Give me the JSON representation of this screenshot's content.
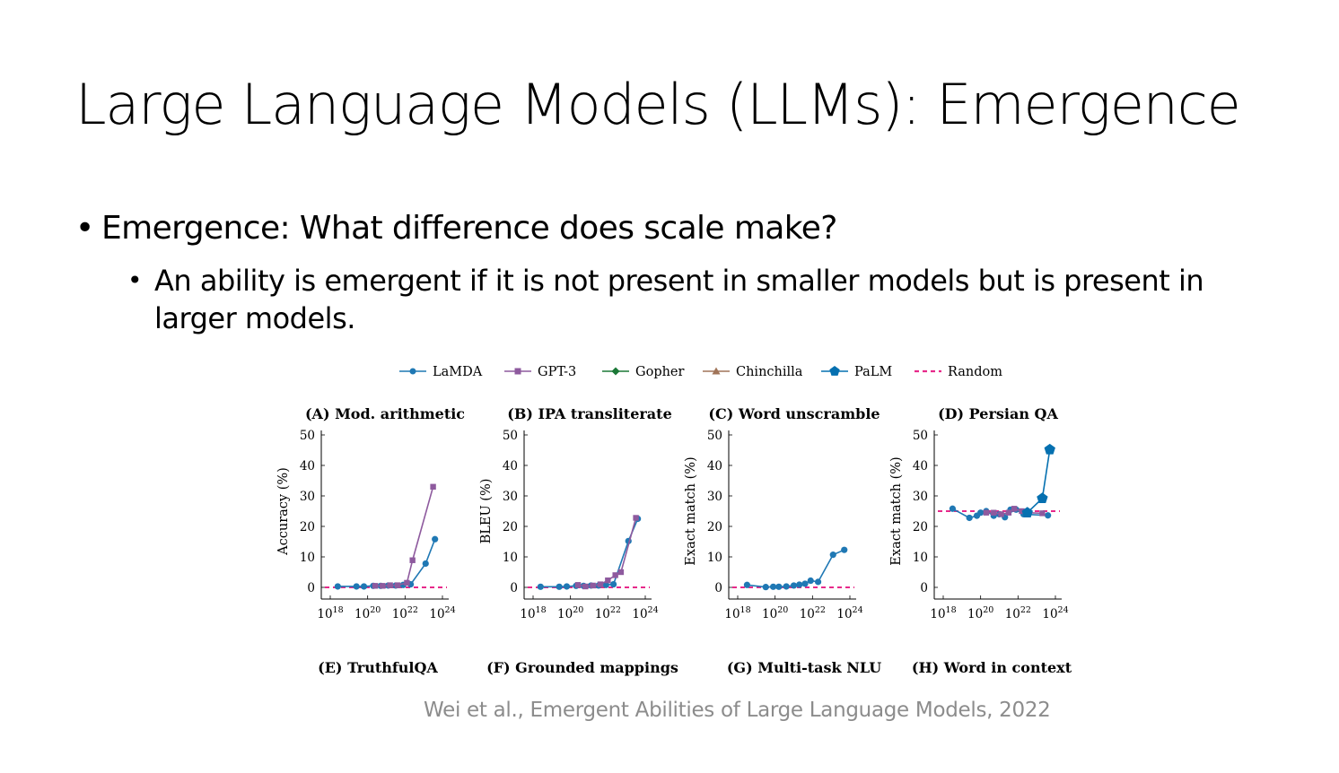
{
  "slide": {
    "title": "Large Language Models (LLMs): Emergence",
    "bullet_level1": "Emergence: What difference does scale make?",
    "bullet_level2": "An ability is emergent if it is not present in smaller models but is present in larger models.",
    "citation": "Wei et al., Emergent Abilities of Large Language Models, 2022",
    "bullet_glyph": "•"
  },
  "legend": [
    {
      "name": "LaMDA",
      "marker": "circle",
      "color": "#1f78b4"
    },
    {
      "name": "GPT-3",
      "marker": "square",
      "color": "#8e5a9e"
    },
    {
      "name": "Gopher",
      "marker": "diamond",
      "color": "#1b7837"
    },
    {
      "name": "Chinchilla",
      "marker": "triangle",
      "color": "#a07458"
    },
    {
      "name": "PaLM",
      "marker": "pentagon",
      "color": "#0570b0"
    },
    {
      "name": "Random",
      "marker": "dashed",
      "color": "#e7298a"
    }
  ],
  "bottom_captions": [
    "(E) TruthfulQA",
    "(F) Grounded mappings",
    "(G) Multi-task NLU",
    "(H) Word in context"
  ],
  "chart_data": [
    {
      "type": "line",
      "title": "(A) Mod. arithmetic",
      "ylabel": "Accuracy (%)",
      "xscale": "log",
      "xlim": [
        1e+18,
        1e+24
      ],
      "ylim": [
        0,
        50
      ],
      "xticks": [
        "10^18",
        "10^20",
        "10^22",
        "10^24"
      ],
      "yticks": [
        0,
        10,
        20,
        30,
        40,
        50
      ],
      "random_baseline": 0,
      "series": [
        {
          "name": "LaMDA",
          "x_log10": [
            18.4,
            19.4,
            19.8,
            20.3,
            20.7,
            21.1,
            21.5,
            21.9,
            22.3,
            23.1,
            23.6
          ],
          "y": [
            0.3,
            0.3,
            0.3,
            0.5,
            0.5,
            0.6,
            0.6,
            0.8,
            1.0,
            7.8,
            15.8
          ]
        },
        {
          "name": "GPT-3",
          "x_log10": [
            20.4,
            20.8,
            21.2,
            21.6,
            22.1,
            22.4,
            23.5
          ],
          "y": [
            0.5,
            0.5,
            0.7,
            0.7,
            1.5,
            8.9,
            33.0
          ]
        }
      ]
    },
    {
      "type": "line",
      "title": "(B) IPA transliterate",
      "ylabel": "BLEU (%)",
      "xscale": "log",
      "xlim": [
        1e+18,
        1e+24
      ],
      "ylim": [
        0,
        50
      ],
      "xticks": [
        "10^18",
        "10^20",
        "10^22",
        "10^24"
      ],
      "yticks": [
        0,
        10,
        20,
        30,
        40,
        50
      ],
      "random_baseline": 0,
      "series": [
        {
          "name": "LaMDA",
          "x_log10": [
            18.4,
            19.4,
            19.8,
            20.3,
            20.7,
            21.1,
            21.5,
            21.9,
            22.3,
            23.1,
            23.6
          ],
          "y": [
            0.2,
            0.2,
            0.3,
            0.5,
            0.5,
            0.6,
            0.6,
            0.8,
            1.0,
            15.2,
            22.5
          ]
        },
        {
          "name": "GPT-3",
          "x_log10": [
            20.4,
            20.8,
            21.2,
            21.6,
            22.0,
            22.4,
            22.7,
            23.5
          ],
          "y": [
            0.8,
            0.3,
            0.6,
            1.0,
            2.3,
            4.0,
            5.0,
            22.8
          ]
        }
      ]
    },
    {
      "type": "line",
      "title": "(C) Word unscramble",
      "ylabel": "Exact match (%)",
      "xscale": "log",
      "xlim": [
        1e+18,
        1e+24
      ],
      "ylim": [
        0,
        50
      ],
      "xticks": [
        "10^18",
        "10^20",
        "10^22",
        "10^24"
      ],
      "yticks": [
        0,
        10,
        20,
        30,
        40,
        50
      ],
      "random_baseline": 0,
      "series": [
        {
          "name": "LaMDA",
          "x_log10": [
            18.5,
            19.5,
            19.9,
            20.2,
            20.6,
            21.0,
            21.3,
            21.6,
            21.9,
            22.3,
            23.1,
            23.7
          ],
          "y": [
            0.8,
            0.1,
            0.2,
            0.2,
            0.3,
            0.6,
            0.9,
            1.2,
            2.2,
            1.8,
            10.7,
            12.3
          ]
        }
      ]
    },
    {
      "type": "line",
      "title": "(D) Persian QA",
      "ylabel": "Exact match (%)",
      "xscale": "log",
      "xlim": [
        1e+18,
        1e+24
      ],
      "ylim": [
        0,
        50
      ],
      "xticks": [
        "10^18",
        "10^20",
        "10^22",
        "10^24"
      ],
      "yticks": [
        0,
        10,
        20,
        30,
        40,
        50
      ],
      "random_baseline": 25,
      "series": [
        {
          "name": "LaMDA",
          "x_log10": [
            18.5,
            19.4,
            19.8,
            20.0,
            20.3,
            20.7,
            21.0,
            21.3,
            21.6,
            21.9,
            22.3,
            23.6
          ],
          "y": [
            25.8,
            22.8,
            23.5,
            24.5,
            25.0,
            23.5,
            24.0,
            23.0,
            25.5,
            25.5,
            24.0,
            23.6
          ]
        },
        {
          "name": "GPT-3",
          "x_log10": [
            20.3,
            20.7,
            21.1,
            21.5,
            21.8,
            22.2,
            22.5,
            23.3
          ],
          "y": [
            24.5,
            24.5,
            24.0,
            24.5,
            25.8,
            25.0,
            24.5,
            24.3
          ]
        },
        {
          "name": "PaLM",
          "x_log10": [
            22.5,
            23.3,
            23.7
          ],
          "y": [
            24.5,
            29.2,
            45.2
          ]
        }
      ]
    }
  ]
}
